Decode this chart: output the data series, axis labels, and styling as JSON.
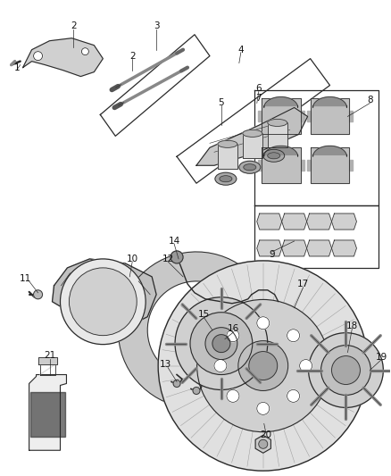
{
  "bg_color": "#ffffff",
  "line_color": "#2a2a2a",
  "label_color": "#111111",
  "figsize": [
    4.38,
    5.33
  ],
  "dpi": 100
}
